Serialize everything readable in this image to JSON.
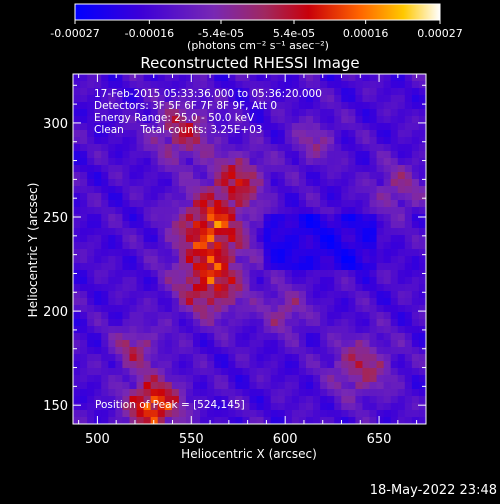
{
  "chart_data": {
    "type": "heatmap",
    "title": "Reconstructed RHESSI Image",
    "xlabel": "Heliocentric X (arcsec)",
    "ylabel": "Heliocentric Y (arcsec)",
    "xlim": [
      487,
      675
    ],
    "ylim": [
      140,
      326
    ],
    "xticks": [
      500,
      550,
      600,
      650
    ],
    "yticks": [
      150,
      200,
      250,
      300
    ],
    "colorbar": {
      "range": [
        -0.00027,
        0.00027
      ],
      "ticks": [
        {
          "value": -0.00027,
          "label": "-0.00027"
        },
        {
          "value": -0.00016,
          "label": "-0.00016"
        },
        {
          "value": -5.4e-05,
          "label": "-5.4e-05"
        },
        {
          "value": 5.4e-05,
          "label": "5.4e-05"
        },
        {
          "value": 0.00016,
          "label": "0.00016"
        },
        {
          "value": 0.00027,
          "label": "0.00027"
        }
      ],
      "unit_label": "(photons cm⁻² s⁻¹ asec⁻²)"
    },
    "annotations": [
      "17-Feb-2015 05:33:36.000 to 05:36:20.000",
      "Detectors: 3F 5F 6F 7F 8F 9F, Att 0",
      "Energy Range: 25.0 - 50.0 keV",
      "Clean     Total counts: 3.25E+03"
    ],
    "peak_label": "Position of Peak = [524,145]",
    "peak": [
      524,
      145
    ],
    "grid": false
  },
  "footer": {
    "timestamp": "18-May-2022 23:48"
  },
  "colors": {
    "background": "#000000",
    "foreground": "#ffffff",
    "colormap": [
      "#0000ff",
      "#3c00d8",
      "#7828b4",
      "#a02860",
      "#c8000a",
      "#ff6400",
      "#ffc800",
      "#ffffff"
    ]
  }
}
